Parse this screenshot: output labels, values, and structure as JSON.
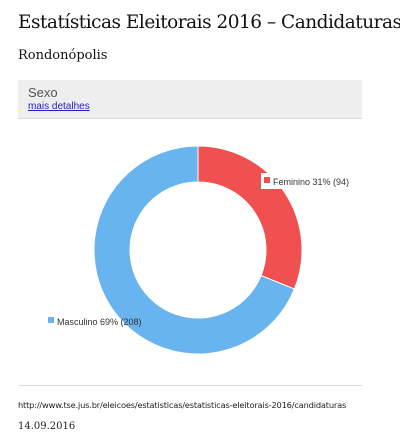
{
  "page": {
    "title": "Estatísticas Eleitorais 2016 – Candidaturas",
    "subtitle": "Rondonópolis"
  },
  "panel": {
    "title": "Sexo",
    "link": "mais detalhes"
  },
  "chart_data": {
    "type": "pie",
    "donut": true,
    "title": "Sexo",
    "slices": [
      {
        "name": "Feminino",
        "value": 94,
        "percent": 31,
        "label": "Feminino 31% (94)",
        "color": "#f0504f"
      },
      {
        "name": "Masculino",
        "value": 208,
        "percent": 69,
        "label": "Masculino 69% (208)",
        "color": "#68b4ef"
      }
    ],
    "legend": "inside-labels"
  },
  "footer": {
    "url": "http://www.tse.jus.br/eleicoes/estatisticas/estatisticas-eleitorais-2016/candidaturas",
    "date": "14.09.2016"
  }
}
